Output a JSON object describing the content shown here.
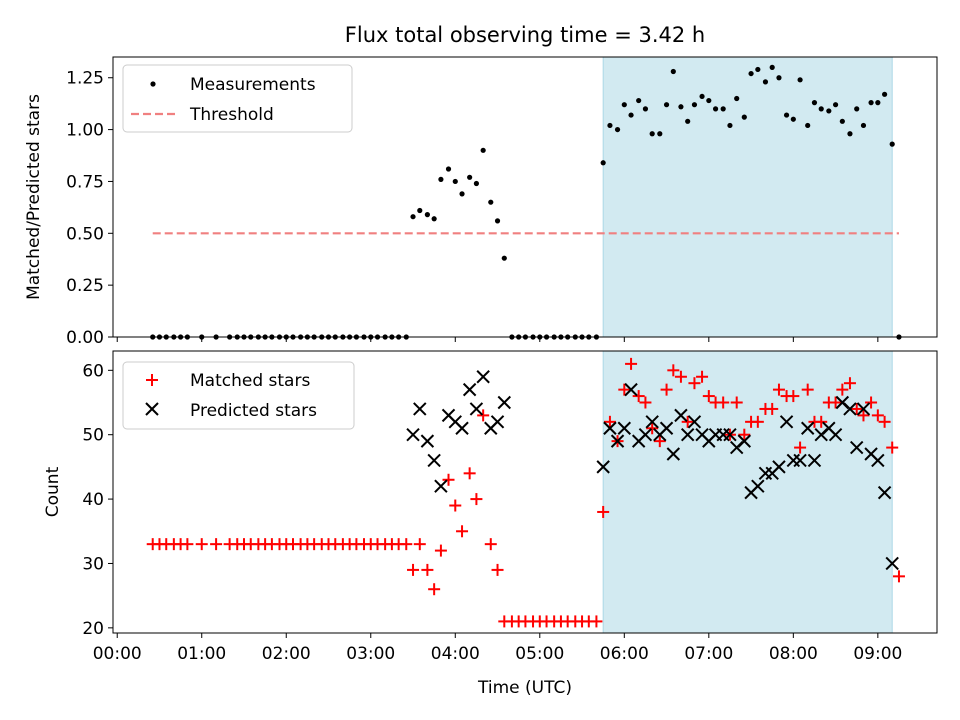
{
  "title": "Flux total observing time = 3.42 h",
  "chart_data": [
    {
      "type": "scatter",
      "ylabel": "Matched/Predicted stars",
      "ylim": [
        0,
        1.35
      ],
      "yticks": [
        0.0,
        0.25,
        0.5,
        0.75,
        1.0,
        1.25
      ],
      "ytick_labels": [
        "0.00",
        "0.25",
        "0.50",
        "0.75",
        "1.00",
        "1.25"
      ],
      "xlim_hours": [
        -0.05,
        9.7
      ],
      "legend_position": "top-left",
      "highlight_span_hours": [
        5.75,
        9.17
      ],
      "highlight_color": "#add8e6",
      "series": [
        {
          "name": "Measurements",
          "marker": "dot",
          "color": "#000000",
          "x": [
            0.42,
            0.5,
            0.58,
            0.67,
            0.75,
            0.83,
            1.0,
            1.17,
            1.33,
            1.42,
            1.5,
            1.58,
            1.67,
            1.75,
            1.83,
            1.92,
            2.0,
            2.08,
            2.17,
            2.25,
            2.33,
            2.42,
            2.5,
            2.58,
            2.67,
            2.75,
            2.83,
            2.92,
            3.0,
            3.08,
            3.17,
            3.25,
            3.33,
            3.42,
            3.5,
            3.58,
            3.67,
            3.75,
            3.83,
            3.92,
            4.0,
            4.08,
            4.17,
            4.25,
            4.33,
            4.42,
            4.5,
            4.58,
            4.67,
            4.75,
            4.83,
            4.92,
            5.0,
            5.08,
            5.17,
            5.25,
            5.33,
            5.42,
            5.5,
            5.58,
            5.67,
            5.75,
            5.83,
            5.92,
            6.0,
            6.08,
            6.17,
            6.25,
            6.33,
            6.42,
            6.5,
            6.58,
            6.67,
            6.75,
            6.83,
            6.92,
            7.0,
            7.08,
            7.17,
            7.25,
            7.33,
            7.42,
            7.5,
            7.58,
            7.67,
            7.75,
            7.83,
            7.92,
            8.0,
            8.08,
            8.17,
            8.25,
            8.33,
            8.42,
            8.5,
            8.58,
            8.67,
            8.75,
            8.83,
            8.92,
            9.0,
            9.08,
            9.17,
            9.25
          ],
          "y": [
            0,
            0,
            0,
            0,
            0,
            0,
            0,
            0,
            0,
            0,
            0,
            0,
            0,
            0,
            0,
            0,
            0,
            0,
            0,
            0,
            0,
            0,
            0,
            0,
            0,
            0,
            0,
            0,
            0,
            0,
            0,
            0,
            0,
            0,
            0.58,
            0.61,
            0.59,
            0.57,
            0.76,
            0.81,
            0.75,
            0.69,
            0.77,
            0.74,
            0.9,
            0.65,
            0.56,
            0.38,
            0,
            0,
            0,
            0,
            0,
            0,
            0,
            0,
            0,
            0,
            0,
            0,
            0,
            0.84,
            1.02,
            1.0,
            1.12,
            1.07,
            1.14,
            1.1,
            0.98,
            0.98,
            1.12,
            1.28,
            1.11,
            1.04,
            1.12,
            1.16,
            1.14,
            1.1,
            1.1,
            1.02,
            1.15,
            1.06,
            1.27,
            1.29,
            1.23,
            1.3,
            1.25,
            1.07,
            1.05,
            1.24,
            1.02,
            1.13,
            1.1,
            1.09,
            1.12,
            1.04,
            0.98,
            1.1,
            1.02,
            1.13,
            1.13,
            1.17,
            0.93,
            0
          ]
        },
        {
          "name": "Threshold",
          "marker": "dashed-line",
          "color": "#f08080",
          "x": [
            0.42,
            9.25
          ],
          "y": [
            0.5,
            0.5
          ]
        }
      ]
    },
    {
      "type": "scatter",
      "xlabel": "Time (UTC)",
      "ylabel": "Count",
      "ylim": [
        19.2,
        63
      ],
      "yticks": [
        20,
        30,
        40,
        50,
        60
      ],
      "ytick_labels": [
        "20",
        "30",
        "40",
        "50",
        "60"
      ],
      "xlim_hours": [
        -0.05,
        9.7
      ],
      "xticks_hours": [
        0,
        1,
        2,
        3,
        4,
        5,
        6,
        7,
        8,
        9
      ],
      "xtick_labels": [
        "00:00",
        "01:00",
        "02:00",
        "03:00",
        "04:00",
        "05:00",
        "06:00",
        "07:00",
        "08:00",
        "09:00"
      ],
      "legend_position": "top-left",
      "highlight_span_hours": [
        5.75,
        9.17
      ],
      "highlight_color": "#add8e6",
      "series": [
        {
          "name": "Matched stars",
          "marker": "plus",
          "color": "#ff0000",
          "x": [
            0.42,
            0.5,
            0.58,
            0.67,
            0.75,
            0.83,
            1.0,
            1.17,
            1.33,
            1.42,
            1.5,
            1.58,
            1.67,
            1.75,
            1.83,
            1.92,
            2.0,
            2.08,
            2.17,
            2.25,
            2.33,
            2.42,
            2.5,
            2.58,
            2.67,
            2.75,
            2.83,
            2.92,
            3.0,
            3.08,
            3.17,
            3.25,
            3.33,
            3.42,
            3.5,
            3.58,
            3.67,
            3.75,
            3.83,
            3.92,
            4.0,
            4.08,
            4.17,
            4.25,
            4.33,
            4.42,
            4.5,
            4.58,
            4.67,
            4.75,
            4.83,
            4.92,
            5.0,
            5.08,
            5.17,
            5.25,
            5.33,
            5.42,
            5.5,
            5.58,
            5.67,
            5.75,
            5.83,
            5.92,
            6.0,
            6.08,
            6.17,
            6.25,
            6.33,
            6.42,
            6.5,
            6.58,
            6.67,
            6.75,
            6.83,
            6.92,
            7.0,
            7.08,
            7.17,
            7.25,
            7.33,
            7.42,
            7.5,
            7.58,
            7.67,
            7.75,
            7.83,
            7.92,
            8.0,
            8.08,
            8.17,
            8.25,
            8.33,
            8.42,
            8.5,
            8.58,
            8.67,
            8.75,
            8.83,
            8.92,
            9.0,
            9.08,
            9.17,
            9.25
          ],
          "y": [
            33,
            33,
            33,
            33,
            33,
            33,
            33,
            33,
            33,
            33,
            33,
            33,
            33,
            33,
            33,
            33,
            33,
            33,
            33,
            33,
            33,
            33,
            33,
            33,
            33,
            33,
            33,
            33,
            33,
            33,
            33,
            33,
            33,
            33,
            29,
            33,
            29,
            26,
            32,
            43,
            39,
            35,
            44,
            40,
            53,
            33,
            29,
            21,
            21,
            21,
            21,
            21,
            21,
            21,
            21,
            21,
            21,
            21,
            21,
            21,
            21,
            38,
            52,
            49,
            57,
            61,
            56,
            55,
            51,
            49,
            57,
            60,
            59,
            52,
            58,
            59,
            56,
            55,
            55,
            50,
            55,
            50,
            52,
            52,
            54,
            54,
            57,
            56,
            56,
            48,
            57,
            52,
            52,
            55,
            55,
            57,
            58,
            54,
            53,
            55,
            53,
            52,
            48,
            28
          ]
        },
        {
          "name": "Predicted stars",
          "marker": "x",
          "color": "#000000",
          "x": [
            3.5,
            3.58,
            3.67,
            3.75,
            3.83,
            3.92,
            4.0,
            4.08,
            4.17,
            4.25,
            4.33,
            4.42,
            4.5,
            4.58,
            5.75,
            5.83,
            5.92,
            6.0,
            6.08,
            6.17,
            6.25,
            6.33,
            6.42,
            6.5,
            6.58,
            6.67,
            6.75,
            6.83,
            6.92,
            7.0,
            7.08,
            7.17,
            7.25,
            7.33,
            7.42,
            7.5,
            7.58,
            7.67,
            7.75,
            7.83,
            7.92,
            8.0,
            8.08,
            8.17,
            8.25,
            8.33,
            8.42,
            8.5,
            8.58,
            8.67,
            8.75,
            8.83,
            8.92,
            9.0,
            9.08,
            9.17
          ],
          "y": [
            50,
            54,
            49,
            46,
            42,
            53,
            52,
            51,
            57,
            54,
            59,
            51,
            52,
            55,
            45,
            51,
            49,
            51,
            57,
            49,
            50,
            52,
            50,
            51,
            47,
            53,
            50,
            52,
            50,
            49,
            50,
            50,
            50,
            48,
            49,
            41,
            42,
            44,
            44,
            45,
            52,
            46,
            46,
            51,
            46,
            50,
            51,
            50,
            55,
            54,
            48,
            54,
            47,
            46,
            41,
            30
          ]
        }
      ]
    }
  ]
}
